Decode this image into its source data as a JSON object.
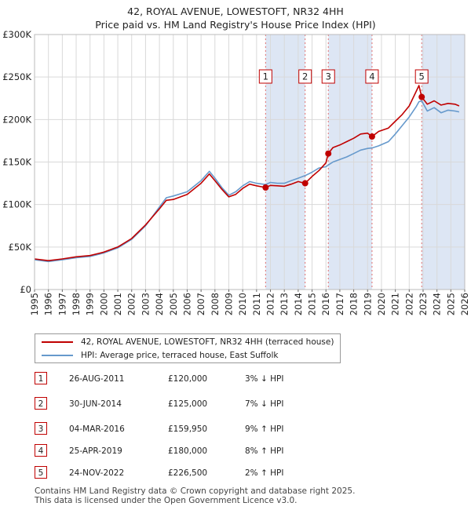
{
  "title": {
    "line1": "42, ROYAL AVENUE, LOWESTOFT, NR32 4HH",
    "line2": "Price paid vs. HM Land Registry's House Price Index (HPI)"
  },
  "colors": {
    "price_paid": "#c00000",
    "hpi": "#6699cc",
    "shade": "#dde6f4",
    "grid": "#d9d9d9",
    "marker_line": "#e07070"
  },
  "legend": {
    "price_paid_label": "42, ROYAL AVENUE, LOWESTOFT, NR32 4HH (terraced house)",
    "hpi_label": "HPI: Average price, terraced house, East Suffolk"
  },
  "sales": [
    {
      "num": "1",
      "date": "26-AUG-2011",
      "price": "£120,000",
      "hpi": "3% ↓ HPI"
    },
    {
      "num": "2",
      "date": "30-JUN-2014",
      "price": "£125,000",
      "hpi": "7% ↓ HPI"
    },
    {
      "num": "3",
      "date": "04-MAR-2016",
      "price": "£159,950",
      "hpi": "9% ↑ HPI"
    },
    {
      "num": "4",
      "date": "25-APR-2019",
      "price": "£180,000",
      "hpi": "8% ↑ HPI"
    },
    {
      "num": "5",
      "date": "24-NOV-2022",
      "price": "£226,500",
      "hpi": "2% ↑ HPI"
    }
  ],
  "footer": {
    "line1": "Contains HM Land Registry data © Crown copyright and database right 2025.",
    "line2": "This data is licensed under the Open Government Licence v3.0."
  },
  "chart_data": {
    "type": "line",
    "title": "42, ROYAL AVENUE, LOWESTOFT, NR32 4HH — Price paid vs. HM Land Registry's House Price Index (HPI)",
    "xlabel": "",
    "ylabel": "",
    "xlim": [
      1995,
      2026
    ],
    "ylim": [
      0,
      300000
    ],
    "x_ticks": [
      "1995",
      "1996",
      "1997",
      "1998",
      "1999",
      "2000",
      "2001",
      "2002",
      "2003",
      "2004",
      "2005",
      "2006",
      "2007",
      "2008",
      "2009",
      "2010",
      "2011",
      "2012",
      "2013",
      "2014",
      "2015",
      "2016",
      "2017",
      "2018",
      "2019",
      "2020",
      "2021",
      "2022",
      "2023",
      "2024",
      "2025",
      "2026"
    ],
    "y_ticks": [
      {
        "value": 0,
        "label": "£0"
      },
      {
        "value": 50000,
        "label": "£50K"
      },
      {
        "value": 100000,
        "label": "£100K"
      },
      {
        "value": 150000,
        "label": "£150K"
      },
      {
        "value": 200000,
        "label": "£200K"
      },
      {
        "value": 250000,
        "label": "£250K"
      },
      {
        "value": 300000,
        "label": "£300K"
      }
    ],
    "grid": true,
    "legend_position": "bottom",
    "series": [
      {
        "name": "42, ROYAL AVENUE, LOWESTOFT, NR32 4HH (terraced house)",
        "points": [
          [
            1995.0,
            36000
          ],
          [
            1996.0,
            34000
          ],
          [
            1997.0,
            36000
          ],
          [
            1998.0,
            38500
          ],
          [
            1999.0,
            40000
          ],
          [
            2000.0,
            44000
          ],
          [
            2001.0,
            50000
          ],
          [
            2002.0,
            60000
          ],
          [
            2003.0,
            76000
          ],
          [
            2004.0,
            95000
          ],
          [
            2004.5,
            105000
          ],
          [
            2005.0,
            106000
          ],
          [
            2006.0,
            112000
          ],
          [
            2007.0,
            125000
          ],
          [
            2007.6,
            136000
          ],
          [
            2008.0,
            128000
          ],
          [
            2008.5,
            118000
          ],
          [
            2009.0,
            109000
          ],
          [
            2009.5,
            112000
          ],
          [
            2010.0,
            119000
          ],
          [
            2010.5,
            124000
          ],
          [
            2011.0,
            122000
          ],
          [
            2011.65,
            120000
          ],
          [
            2012.0,
            122500
          ],
          [
            2012.5,
            122000
          ],
          [
            2013.0,
            121500
          ],
          [
            2013.5,
            124000
          ],
          [
            2014.0,
            127000
          ],
          [
            2014.5,
            125000
          ],
          [
            2015.0,
            133000
          ],
          [
            2015.5,
            140000
          ],
          [
            2016.0,
            149000
          ],
          [
            2016.17,
            159950
          ],
          [
            2016.5,
            167000
          ],
          [
            2017.0,
            170000
          ],
          [
            2017.5,
            174000
          ],
          [
            2018.0,
            178000
          ],
          [
            2018.5,
            183000
          ],
          [
            2019.0,
            184000
          ],
          [
            2019.32,
            180000
          ],
          [
            2019.8,
            186000
          ],
          [
            2020.5,
            190000
          ],
          [
            2021.0,
            198000
          ],
          [
            2021.5,
            206000
          ],
          [
            2022.0,
            216000
          ],
          [
            2022.5,
            233000
          ],
          [
            2022.7,
            240000
          ],
          [
            2022.9,
            226500
          ],
          [
            2023.3,
            218000
          ],
          [
            2023.8,
            222000
          ],
          [
            2024.3,
            217000
          ],
          [
            2024.8,
            219000
          ],
          [
            2025.3,
            218000
          ],
          [
            2025.6,
            216000
          ]
        ]
      },
      {
        "name": "HPI: Average price, terraced house, East Suffolk",
        "points": [
          [
            1995.0,
            35000
          ],
          [
            1996.0,
            33000
          ],
          [
            1997.0,
            35000
          ],
          [
            1998.0,
            37500
          ],
          [
            1999.0,
            39000
          ],
          [
            2000.0,
            43000
          ],
          [
            2001.0,
            49000
          ],
          [
            2002.0,
            59000
          ],
          [
            2003.0,
            75000
          ],
          [
            2004.0,
            97000
          ],
          [
            2004.5,
            108000
          ],
          [
            2005.0,
            110000
          ],
          [
            2006.0,
            115000
          ],
          [
            2007.0,
            128000
          ],
          [
            2007.6,
            139000
          ],
          [
            2008.0,
            131000
          ],
          [
            2008.5,
            120000
          ],
          [
            2009.0,
            111000
          ],
          [
            2009.5,
            115000
          ],
          [
            2010.0,
            122000
          ],
          [
            2010.5,
            127000
          ],
          [
            2011.0,
            125000
          ],
          [
            2011.65,
            123500
          ],
          [
            2012.0,
            126000
          ],
          [
            2012.5,
            125000
          ],
          [
            2013.0,
            125000
          ],
          [
            2013.5,
            128000
          ],
          [
            2014.0,
            131000
          ],
          [
            2014.5,
            134000
          ],
          [
            2015.0,
            138000
          ],
          [
            2015.5,
            143000
          ],
          [
            2016.0,
            144500
          ],
          [
            2016.17,
            146500
          ],
          [
            2016.5,
            150000
          ],
          [
            2017.0,
            153000
          ],
          [
            2017.5,
            156000
          ],
          [
            2018.0,
            160000
          ],
          [
            2018.5,
            164000
          ],
          [
            2019.0,
            166000
          ],
          [
            2019.32,
            166500
          ],
          [
            2019.8,
            169000
          ],
          [
            2020.5,
            174000
          ],
          [
            2021.0,
            183000
          ],
          [
            2021.5,
            193000
          ],
          [
            2022.0,
            203000
          ],
          [
            2022.5,
            215000
          ],
          [
            2022.7,
            221000
          ],
          [
            2022.9,
            222000
          ],
          [
            2023.3,
            210000
          ],
          [
            2023.8,
            214000
          ],
          [
            2024.3,
            208000
          ],
          [
            2024.8,
            211000
          ],
          [
            2025.3,
            210000
          ],
          [
            2025.6,
            209000
          ]
        ]
      }
    ],
    "sales": [
      {
        "label": "1",
        "x": 2011.65,
        "y": 120000
      },
      {
        "label": "2",
        "x": 2014.5,
        "y": 125000
      },
      {
        "label": "3",
        "x": 2016.17,
        "y": 159950
      },
      {
        "label": "4",
        "x": 2019.32,
        "y": 180000
      },
      {
        "label": "5",
        "x": 2022.9,
        "y": 226500
      }
    ]
  }
}
